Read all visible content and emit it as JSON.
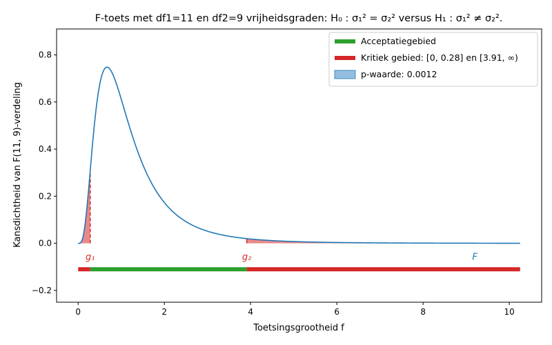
{
  "chart_data": {
    "type": "line",
    "title": "F-toets met df1=11 en df2=9 vrijheidsgraden: H₀ : σ₁² = σ₂² versus H₁ : σ₁² ≠ σ₂².",
    "xlabel": "Toetsingsgrootheid f",
    "ylabel": "Kansdichtheid van F(11, 9)-verdeling",
    "xlim": [
      -0.5,
      10.75
    ],
    "ylim": [
      -0.25,
      0.91
    ],
    "x_ticks": [
      0,
      2,
      4,
      6,
      8,
      10
    ],
    "x_tick_labels": [
      "0",
      "2",
      "4",
      "6",
      "8",
      "10"
    ],
    "y_ticks": [
      -0.2,
      0.0,
      0.2,
      0.4,
      0.6,
      0.8
    ],
    "y_tick_labels": [
      "−0.2",
      "0.0",
      "0.2",
      "0.4",
      "0.6",
      "0.8"
    ],
    "grid": false,
    "legend_position": "top-right",
    "distribution": {
      "family": "F",
      "df1": 11,
      "df2": 9,
      "x_max": 10.25
    },
    "critical_values": {
      "g1": 0.28,
      "g2": 3.91
    },
    "p_value": 0.0012,
    "acceptance_region": [
      0.28,
      3.91
    ],
    "critical_region_left": [
      0,
      0.28
    ],
    "critical_region_right": [
      3.91,
      10.25
    ],
    "region_bar_y": -0.11,
    "annotations": [
      {
        "id": "g1",
        "text": "g₁",
        "x": 0.28,
        "y": -0.055,
        "color": "#d62728"
      },
      {
        "id": "g2",
        "text": "g₂",
        "x": 3.91,
        "y": -0.055,
        "color": "#d62728"
      },
      {
        "id": "F",
        "text": "F",
        "x": 9.2,
        "y": -0.055,
        "color": "#1f77b4"
      }
    ],
    "legend": [
      {
        "id": "acceptance",
        "label": "Acceptatiegebied",
        "color": "#2ca02c",
        "kind": "line"
      },
      {
        "id": "critical",
        "label": "Kritiek gebied: [0, 0.28] en [3.91, ∞)",
        "color": "#d62728",
        "kind": "line"
      },
      {
        "id": "pvalue",
        "label": "p-waarde: 0.0012",
        "color": "#1f77b4",
        "kind": "patch"
      }
    ],
    "colors": {
      "curve": "#1f77b4",
      "acceptance": "#2ca02c",
      "critical": "#d62728",
      "critical_fill": "#e88a8a",
      "pvalue_fill": "#94bfe0",
      "axis": "#000000"
    }
  }
}
